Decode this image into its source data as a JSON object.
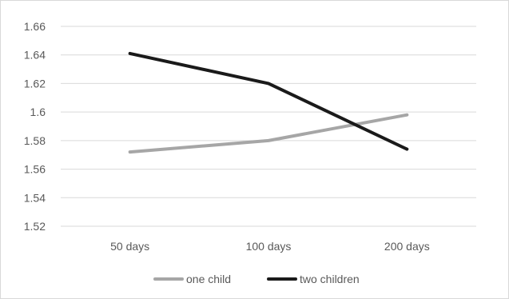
{
  "chart_data": {
    "type": "line",
    "title": "",
    "xlabel": "",
    "ylabel": "",
    "categories": [
      "50 days",
      "100 days",
      "200 days"
    ],
    "ylim": [
      1.52,
      1.66
    ],
    "yticks": [
      "1.52",
      "1.54",
      "1.56",
      "1.58",
      "1.6",
      "1.62",
      "1.64",
      "1.66"
    ],
    "grid": true,
    "legend_position": "bottom",
    "series": [
      {
        "name": "one child",
        "values": [
          1.572,
          1.58,
          1.598
        ],
        "color": "#a6a6a6"
      },
      {
        "name": "two children",
        "values": [
          1.641,
          1.62,
          1.574
        ],
        "color": "#1a1a1a"
      }
    ]
  },
  "colors": {
    "grid": "#d9d9d9",
    "text": "#595959",
    "frame": "#d9d9d9"
  }
}
